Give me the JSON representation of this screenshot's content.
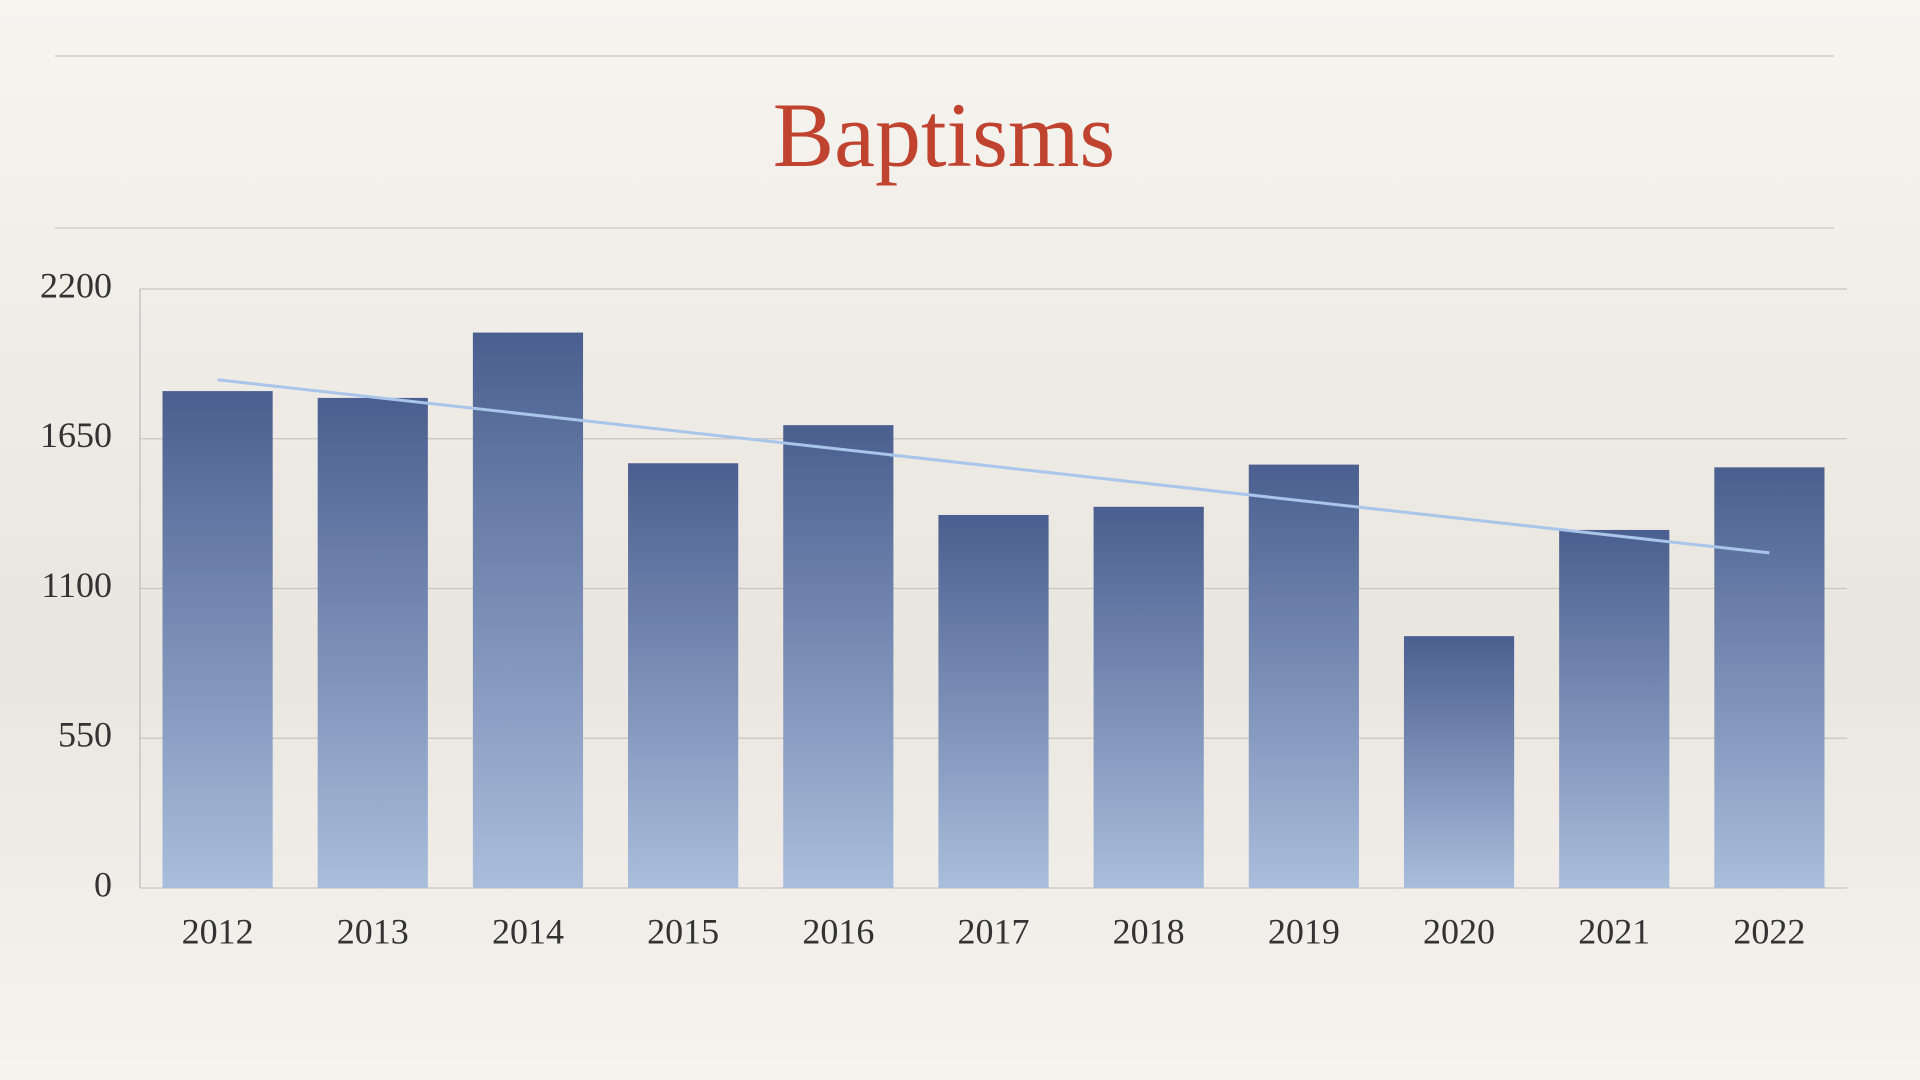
{
  "chart_data": {
    "type": "bar",
    "title": "Baptisms",
    "categories": [
      "2012",
      "2013",
      "2014",
      "2015",
      "2016",
      "2017",
      "2018",
      "2019",
      "2020",
      "2021",
      "2022"
    ],
    "values": [
      1825,
      1800,
      2040,
      1560,
      1700,
      1370,
      1400,
      1555,
      925,
      1315,
      1545
    ],
    "color": "#4a5f8f",
    "ylim": [
      0,
      2200
    ],
    "yticks": [
      0,
      550,
      1100,
      1650,
      2200
    ],
    "grid": true,
    "trendline": true
  }
}
